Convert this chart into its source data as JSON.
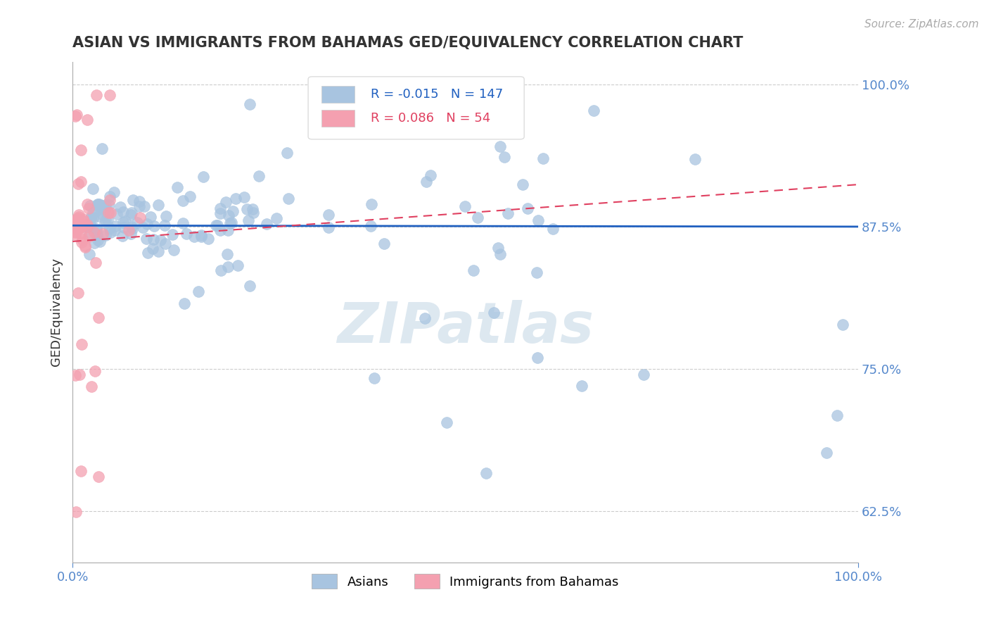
{
  "title": "ASIAN VS IMMIGRANTS FROM BAHAMAS GED/EQUIVALENCY CORRELATION CHART",
  "source_text": "Source: ZipAtlas.com",
  "ylabel": "GED/Equivalency",
  "xlim": [
    0.0,
    1.0
  ],
  "ylim": [
    0.58,
    1.02
  ],
  "yticks": [
    0.625,
    0.75,
    0.875,
    1.0
  ],
  "ytick_labels": [
    "62.5%",
    "75.0%",
    "87.5%",
    "100.0%"
  ],
  "xticks": [
    0.0,
    1.0
  ],
  "xtick_labels": [
    "0.0%",
    "100.0%"
  ],
  "legend_r_asian": "-0.015",
  "legend_n_asian": "147",
  "legend_r_bahamas": "0.086",
  "legend_n_bahamas": "54",
  "asian_color": "#a8c4e0",
  "bahamas_color": "#f4a0b0",
  "trendline_asian_color": "#2060c0",
  "trendline_bahamas_color": "#e04060",
  "watermark": "ZIPatlas"
}
